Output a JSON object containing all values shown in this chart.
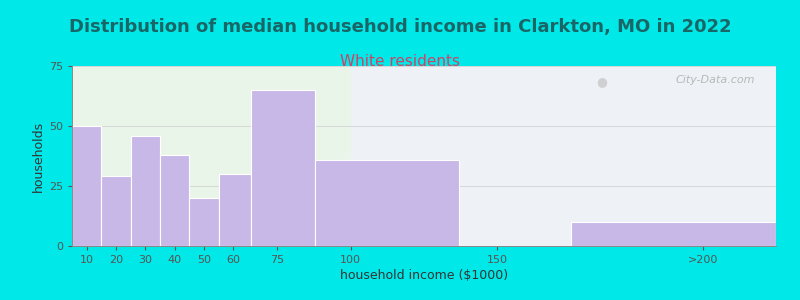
{
  "title": "Distribution of median household income in Clarkton, MO in 2022",
  "subtitle": "White residents",
  "xlabel": "household income ($1000)",
  "ylabel": "households",
  "title_fontsize": 13,
  "subtitle_fontsize": 11,
  "title_color": "#1a6666",
  "subtitle_color": "#cc4466",
  "bar_color": "#c8b8e8",
  "bar_edge_color": "#ffffff",
  "background_outer": "#00e8e8",
  "background_inner": "#eaf5ea",
  "ylim": [
    0,
    75
  ],
  "yticks": [
    0,
    25,
    50,
    75
  ],
  "xtick_positions": [
    10,
    20,
    30,
    40,
    50,
    60,
    75,
    100,
    150,
    220
  ],
  "xtick_labels": [
    "10",
    "20",
    "30",
    "40",
    "50",
    "60",
    "75",
    "100",
    "150",
    ">200"
  ],
  "values": [
    50,
    29,
    46,
    38,
    20,
    30,
    65,
    36,
    0,
    10
  ],
  "bar_lefts": [
    5,
    15,
    25,
    35,
    45,
    55,
    66,
    88,
    137,
    175
  ],
  "bar_rights": [
    15,
    25,
    35,
    45,
    55,
    66,
    88,
    137,
    137,
    245
  ],
  "watermark": "City-Data.com",
  "xlim": [
    5,
    245
  ]
}
